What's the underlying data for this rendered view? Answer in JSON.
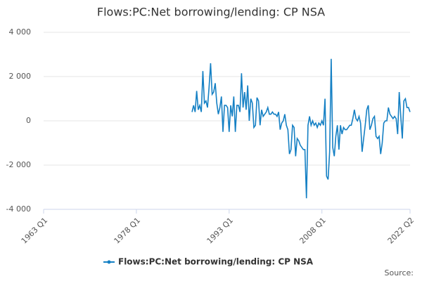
{
  "chart_data": {
    "type": "line",
    "title": "Flows:PC:Net borrowing/lending: CP NSA",
    "source": "Source:",
    "categories": [
      "1963 Q1",
      null,
      null,
      null,
      null,
      null,
      null,
      null,
      null,
      null,
      null,
      null,
      null,
      null,
      null,
      null,
      null,
      null,
      null,
      null,
      null,
      null,
      null,
      null,
      null,
      null,
      null,
      null,
      null,
      null,
      null,
      null,
      null,
      null,
      null,
      null,
      null,
      null,
      null,
      null,
      null,
      null,
      null,
      null,
      null,
      null,
      null,
      null,
      null,
      null,
      null,
      null,
      null,
      null,
      null,
      null,
      null,
      null,
      null,
      null,
      "1978 Q1",
      null,
      null,
      null,
      null,
      null,
      null,
      null,
      null,
      null,
      null,
      null,
      null,
      null,
      null,
      null,
      null,
      null,
      null,
      null,
      null,
      null,
      null,
      null,
      null,
      null,
      null,
      null,
      null,
      null,
      null,
      null,
      null,
      null,
      null,
      null,
      null,
      null,
      null,
      null,
      null,
      null,
      null,
      null,
      null,
      null,
      null,
      null,
      null,
      null,
      null,
      null,
      null,
      null,
      null,
      null,
      null,
      null,
      null,
      null,
      "1993 Q1",
      null,
      null,
      null,
      null,
      null,
      null,
      null,
      null,
      null,
      null,
      null,
      null,
      null,
      null,
      null,
      null,
      null,
      null,
      null,
      null,
      null,
      null,
      null,
      null,
      null,
      null,
      null,
      null,
      null,
      null,
      null,
      null,
      null,
      null,
      null,
      null,
      null,
      null,
      null,
      null,
      null,
      null,
      null,
      null,
      null,
      null,
      null,
      null,
      null,
      null,
      null,
      null,
      null,
      null,
      null,
      null,
      null,
      null,
      null,
      "2008 Q1",
      null,
      null,
      null,
      null,
      null,
      null,
      null,
      null,
      null,
      null,
      null,
      null,
      null,
      null,
      null,
      null,
      null,
      null,
      null,
      null,
      null,
      null,
      null,
      null,
      null,
      null,
      null,
      null,
      null,
      null,
      null,
      null,
      null,
      null,
      null,
      null,
      null,
      null,
      null,
      null,
      null,
      null,
      null,
      null,
      null,
      null,
      null,
      null,
      null,
      null,
      null,
      null,
      null,
      null,
      null,
      null,
      "2022 Q2"
    ],
    "series": [
      {
        "name": "Flows:PC:Net borrowing/lending: CP NSA",
        "color": "#1580c4",
        "values": [
          null,
          null,
          null,
          null,
          null,
          null,
          null,
          null,
          null,
          null,
          null,
          null,
          null,
          null,
          null,
          null,
          null,
          null,
          null,
          null,
          null,
          null,
          null,
          null,
          null,
          null,
          null,
          null,
          null,
          null,
          null,
          null,
          null,
          null,
          null,
          null,
          null,
          null,
          null,
          null,
          null,
          null,
          null,
          null,
          null,
          null,
          null,
          null,
          null,
          null,
          null,
          null,
          null,
          null,
          null,
          null,
          null,
          null,
          null,
          null,
          null,
          null,
          null,
          null,
          null,
          null,
          null,
          null,
          null,
          null,
          null,
          null,
          null,
          null,
          null,
          null,
          null,
          null,
          null,
          null,
          null,
          null,
          null,
          null,
          null,
          null,
          null,
          null,
          null,
          null,
          null,
          null,
          null,
          null,
          null,
          null,
          400,
          700,
          400,
          1350,
          500,
          700,
          400,
          2250,
          800,
          900,
          600,
          1500,
          2600,
          1200,
          1300,
          1700,
          800,
          300,
          600,
          1100,
          -500,
          700,
          700,
          600,
          -500,
          700,
          200,
          1100,
          -500,
          700,
          700,
          400,
          2150,
          600,
          1300,
          500,
          1600,
          0,
          1000,
          800,
          -300,
          -200,
          1050,
          900,
          -200,
          500,
          200,
          300,
          400,
          600,
          300,
          300,
          400,
          300,
          300,
          200,
          400,
          -400,
          -100,
          0,
          300,
          -200,
          -400,
          -1500,
          -1300,
          -200,
          -300,
          -1600,
          -800,
          -900,
          -1100,
          -1200,
          -1300,
          -1300,
          -3500,
          -200,
          200,
          -200,
          0,
          -200,
          -100,
          -300,
          -100,
          -200,
          0,
          -200,
          1000,
          -2500,
          -2650,
          -1400,
          2800,
          -1200,
          -1600,
          -700,
          -200,
          -1300,
          -200,
          -600,
          -300,
          -400,
          -400,
          -300,
          -200,
          -200,
          100,
          500,
          100,
          0,
          200,
          -100,
          -1400,
          -800,
          -200,
          500,
          700,
          -400,
          -200,
          100,
          200,
          -700,
          -800,
          -700,
          -1500,
          -1000,
          -100,
          0,
          0,
          600,
          300,
          200,
          100,
          200,
          100,
          -600,
          1300,
          200,
          -800,
          900,
          1000,
          600,
          600,
          400
        ]
      }
    ],
    "ylim": [
      -4000,
      4000
    ],
    "yticks": [
      {
        "value": -4000,
        "label": "-4 000"
      },
      {
        "value": -2000,
        "label": "-2 000"
      },
      0,
      {
        "value": 2000,
        "label": "2 000"
      },
      {
        "value": 4000,
        "label": "4 000"
      }
    ],
    "grid": true
  }
}
